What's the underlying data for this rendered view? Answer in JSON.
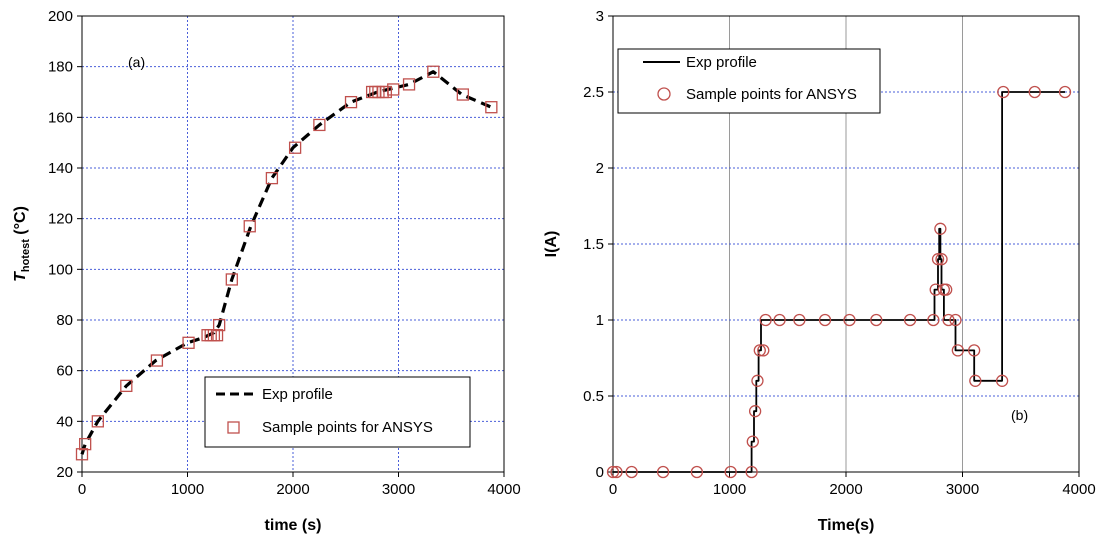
{
  "chart_data": [
    {
      "panel": "(a)",
      "type": "line",
      "xlabel": "time (s)",
      "ylabel_main": "T",
      "ylabel_sub": "hotest",
      "ylabel_unit": " (°C)",
      "xlim": [
        0,
        4000
      ],
      "ylim": [
        20,
        200
      ],
      "xticks": [
        0,
        1000,
        2000,
        3000,
        4000
      ],
      "yticks": [
        20,
        40,
        60,
        80,
        100,
        120,
        140,
        160,
        180,
        200
      ],
      "grid": true,
      "legend_position": "bottom-right",
      "legend": [
        "Exp profile",
        "Sample points for ANSYS"
      ],
      "series": [
        {
          "name": "Exp profile",
          "style": "dashed",
          "color": "#000000",
          "x": [
            0,
            30,
            150,
            420,
            700,
            1000,
            1150,
            1250,
            1300,
            1420,
            1600,
            1800,
            2000,
            2250,
            2550,
            2800,
            3100,
            3330,
            3600,
            3880
          ],
          "y": [
            27,
            31,
            40,
            54,
            64,
            71,
            73,
            75,
            78,
            96,
            117,
            136,
            148,
            157,
            166,
            170,
            173,
            178,
            169,
            164
          ]
        },
        {
          "name": "Sample points for ANSYS",
          "style": "square-marker",
          "color": "#c0504d",
          "x": [
            0,
            30,
            150,
            420,
            710,
            1010,
            1190,
            1220,
            1250,
            1280,
            1300,
            1420,
            1590,
            1800,
            2020,
            2250,
            2550,
            2750,
            2780,
            2810,
            2850,
            2880,
            2950,
            3100,
            3330,
            3610,
            3880
          ],
          "y": [
            27,
            31,
            40,
            54,
            64,
            71,
            74,
            74,
            74,
            74,
            78,
            96,
            117,
            136,
            148,
            157,
            166,
            170,
            170,
            170,
            170,
            170,
            171,
            173,
            178,
            169,
            164
          ]
        }
      ]
    },
    {
      "panel": "(b)",
      "type": "line",
      "xlabel": "Time(s)",
      "ylabel": "I(A)",
      "xlim": [
        0,
        4000
      ],
      "ylim": [
        0,
        3
      ],
      "xticks": [
        0,
        1000,
        2000,
        3000,
        4000
      ],
      "yticks": [
        0,
        0.5,
        1,
        1.5,
        2,
        2.5,
        3
      ],
      "grid": true,
      "legend_position": "top-left",
      "legend": [
        "Exp profile",
        "Sample points for ANSYS"
      ],
      "series": [
        {
          "name": "Exp profile",
          "style": "step-solid",
          "color": "#000000",
          "x": [
            0,
            1190,
            1190,
            1210,
            1210,
            1230,
            1230,
            1250,
            1250,
            1270,
            1270,
            1300,
            1300,
            2760,
            2760,
            2790,
            2790,
            2800,
            2800,
            2810,
            2810,
            2820,
            2820,
            2840,
            2840,
            2860,
            2860,
            2880,
            2880,
            2940,
            2940,
            3100,
            3100,
            3340,
            3340,
            3880
          ],
          "y": [
            0,
            0,
            0.2,
            0.2,
            0.4,
            0.4,
            0.6,
            0.6,
            0.8,
            0.8,
            1.0,
            1.0,
            1.0,
            1.0,
            1.2,
            1.2,
            1.4,
            1.4,
            1.6,
            1.6,
            1.4,
            1.4,
            1.2,
            1.2,
            1.0,
            1.0,
            1.0,
            1.0,
            1.0,
            1.0,
            0.8,
            0.8,
            0.6,
            0.6,
            2.5,
            2.5
          ]
        },
        {
          "name": "Sample points for ANSYS",
          "style": "circle-marker",
          "color": "#c0504d",
          "x": [
            0,
            30,
            160,
            430,
            720,
            1010,
            1190,
            1200,
            1220,
            1240,
            1260,
            1290,
            1310,
            1430,
            1600,
            1820,
            2030,
            2260,
            2550,
            2750,
            2770,
            2790,
            2810,
            2820,
            2840,
            2860,
            2880,
            2940,
            2960,
            3100,
            3110,
            3340,
            3350,
            3620,
            3880
          ],
          "y": [
            0,
            0,
            0,
            0,
            0,
            0,
            0,
            0.2,
            0.4,
            0.6,
            0.8,
            0.8,
            1.0,
            1.0,
            1.0,
            1.0,
            1.0,
            1.0,
            1.0,
            1.0,
            1.2,
            1.4,
            1.6,
            1.4,
            1.2,
            1.2,
            1.0,
            1.0,
            0.8,
            0.8,
            0.6,
            0.6,
            2.5,
            2.5,
            2.5
          ]
        }
      ]
    }
  ]
}
